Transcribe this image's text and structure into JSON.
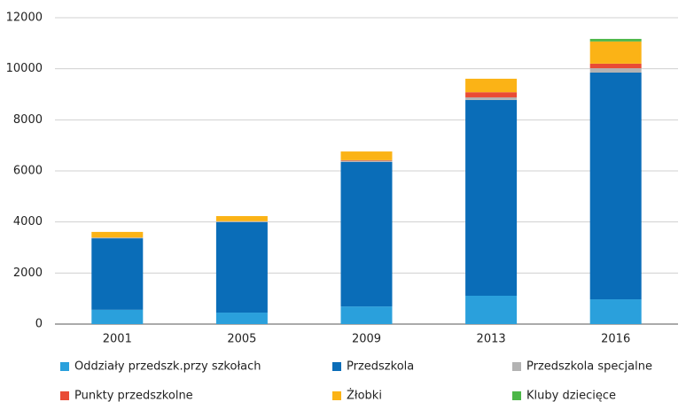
{
  "chart_data": {
    "type": "stacked_bar",
    "categories": [
      "2001",
      "2005",
      "2009",
      "2013",
      "2016"
    ],
    "series": [
      {
        "name": "Oddziały przedszk.przy szkołach",
        "color": "#2aa0dc",
        "values": [
          560,
          450,
          690,
          1110,
          970
        ]
      },
      {
        "name": "Przedszkola",
        "color": "#0a6db8",
        "values": [
          2800,
          3540,
          5660,
          7670,
          8880
        ]
      },
      {
        "name": "Przedszkola specjalne",
        "color": "#b3b3b3",
        "values": [
          30,
          40,
          50,
          100,
          170
        ]
      },
      {
        "name": "Punkty przedszkolne",
        "color": "#e94b35",
        "values": [
          0,
          0,
          20,
          200,
          180
        ]
      },
      {
        "name": "Żłobki",
        "color": "#fbb316",
        "values": [
          220,
          200,
          340,
          530,
          870
        ]
      },
      {
        "name": "Kluby dziecięce",
        "color": "#4cb748",
        "values": [
          0,
          0,
          0,
          0,
          100
        ]
      }
    ],
    "ylim": [
      0,
      12000
    ],
    "yticks": [
      0,
      2000,
      4000,
      6000,
      8000,
      10000,
      12000
    ],
    "grid": true,
    "legend": "bottom"
  }
}
